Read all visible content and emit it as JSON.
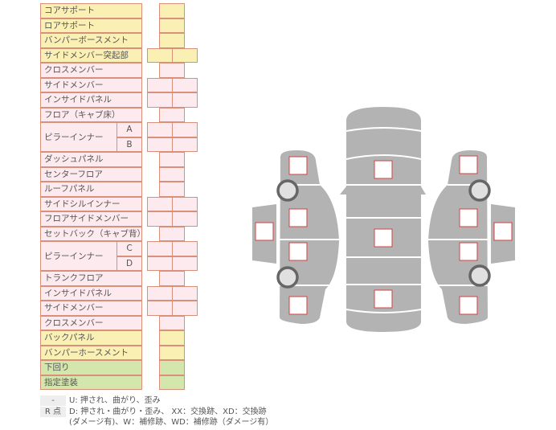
{
  "colors": {
    "yellow": "#fbf0b4",
    "pink": "#fdeaee",
    "green": "#d3e6ab",
    "border": "#d9907a",
    "car": "#b3b3b3",
    "mark": "#d04040"
  },
  "rows": [
    {
      "label": "コアサポート",
      "color": "yellow",
      "cells": "single"
    },
    {
      "label": "ロアサポート",
      "color": "yellow",
      "cells": "single"
    },
    {
      "label": "バンパーボースメント",
      "color": "yellow",
      "cells": "single"
    },
    {
      "label": "サイドメンバー突起部",
      "color": "yellow",
      "cells": "double"
    },
    {
      "label": "クロスメンバー",
      "color": "pink",
      "cells": "single"
    },
    {
      "label": "サイドメンバー",
      "color": "pink",
      "cells": "double"
    },
    {
      "label": "インサイドパネル",
      "color": "pink",
      "cells": "double"
    },
    {
      "label": "フロア（キャブ床）",
      "color": "pink",
      "cells": "single"
    },
    {
      "label": "ピラーインナー",
      "color": "pink",
      "cells": "double",
      "subs": [
        "A",
        "B"
      ]
    },
    {
      "label": "ダッシュパネル",
      "color": "pink",
      "cells": "single"
    },
    {
      "label": "センターフロア",
      "color": "pink",
      "cells": "single"
    },
    {
      "label": "ルーフパネル",
      "color": "pink",
      "cells": "single"
    },
    {
      "label": "サイドシルインナー",
      "color": "pink",
      "cells": "double"
    },
    {
      "label": "フロアサイドメンバー",
      "color": "pink",
      "cells": "double"
    },
    {
      "label": "セットバック（キャブ背）",
      "color": "pink",
      "cells": "single"
    },
    {
      "label": "ピラーインナー",
      "color": "pink",
      "cells": "double",
      "subs": [
        "C",
        "D"
      ]
    },
    {
      "label": "トランクフロア",
      "color": "pink",
      "cells": "single"
    },
    {
      "label": "インサイドパネル",
      "color": "pink",
      "cells": "double"
    },
    {
      "label": "サイドメンバー",
      "color": "pink",
      "cells": "double"
    },
    {
      "label": "クロスメンバー",
      "color": "pink",
      "cells": "single"
    },
    {
      "label": "バックパネル",
      "color": "yellow",
      "cells": "single"
    },
    {
      "label": "バンパーホースメント",
      "color": "yellow",
      "cells": "single"
    },
    {
      "label": "下回り",
      "color": "green",
      "cells": "single"
    },
    {
      "label": "指定塗装",
      "color": "green",
      "cells": "single"
    }
  ],
  "legend": [
    {
      "key": "-",
      "text": "U: 押され、曲がり、歪み"
    },
    {
      "key": "R 点",
      "text": "D: 押され・曲がり・歪み、 XX：交換跡、XD：交換跡",
      "text2": "(ダメージ有)、W：補修跡、WD：補修跡（ダメージ有）"
    }
  ]
}
